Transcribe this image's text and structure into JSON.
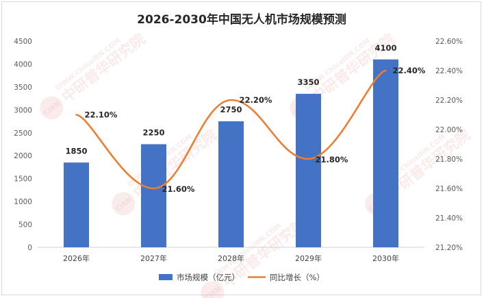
{
  "watermark": {
    "brand": "中研普华研究院",
    "url": "WWW.ChinaIRN.COM",
    "seal": "CIRN"
  },
  "chart_data": {
    "type": "bar",
    "title": "2026-2030年中国无人机市场规模预测",
    "categories": [
      "2026年",
      "2027年",
      "2028年",
      "2029年",
      "2030年"
    ],
    "series": [
      {
        "name": "市场规模（亿元）",
        "type": "bar",
        "axis": "left",
        "values": [
          1850,
          2250,
          2750,
          3350,
          4100
        ],
        "color": "#4472c4"
      },
      {
        "name": "同比增长（%）",
        "type": "line",
        "axis": "right",
        "smooth": true,
        "values": [
          22.1,
          21.6,
          22.2,
          21.8,
          22.4
        ],
        "color": "#ed7d31"
      }
    ],
    "bar_labels": [
      "1850",
      "2250",
      "2750",
      "3350",
      "4100"
    ],
    "line_labels": [
      "22.10%",
      "21.60%",
      "22.20%",
      "21.80%",
      "22.40%"
    ],
    "y_left": {
      "min": 0,
      "max": 4500,
      "step": 500,
      "ticks": [
        "0",
        "500",
        "1000",
        "1500",
        "2000",
        "2500",
        "3000",
        "3500",
        "4000",
        "4500"
      ]
    },
    "y_right": {
      "min": 21.2,
      "max": 22.6,
      "step": 0.2,
      "ticks": [
        "21.20%",
        "21.40%",
        "21.60%",
        "21.80%",
        "22.00%",
        "22.20%",
        "22.40%",
        "22.60%"
      ]
    },
    "grid": false,
    "legend_position": "bottom"
  }
}
